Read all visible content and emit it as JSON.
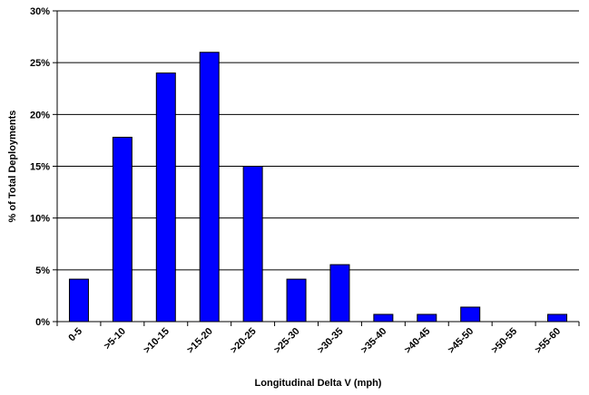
{
  "chart_data": {
    "type": "bar",
    "title": "",
    "xlabel": "Longitudinal Delta V (mph)",
    "ylabel": "% of Total Deployments",
    "categories": [
      ">0-5",
      ">5-10",
      ">10-15",
      ">15-20",
      ">20-25",
      ">25-30",
      ">30-35",
      ">35-40",
      ">40-45",
      ">45-50",
      ">50-55",
      ">55-60"
    ],
    "category_labels": [
      "0-5",
      ">5-10",
      ">10-15",
      ">15-20",
      ">20-25",
      ">25-30",
      ">30-35",
      ">35-40",
      ">40-45",
      ">45-50",
      ">50-55",
      ">55-60"
    ],
    "values": [
      4.1,
      17.8,
      24.0,
      26.0,
      15.0,
      4.1,
      5.5,
      0.7,
      0.7,
      1.4,
      0.0,
      0.7
    ],
    "ylim": [
      0,
      30
    ],
    "yticks": [
      0,
      5,
      10,
      15,
      20,
      25,
      30
    ],
    "ytick_labels": [
      "0%",
      "5%",
      "10%",
      "15%",
      "20%",
      "25%",
      "30%"
    ],
    "grid": true,
    "legend": "none",
    "colors": {
      "bar_fill": "#0000ff",
      "bar_stroke": "#000000",
      "grid": "#000000"
    }
  }
}
